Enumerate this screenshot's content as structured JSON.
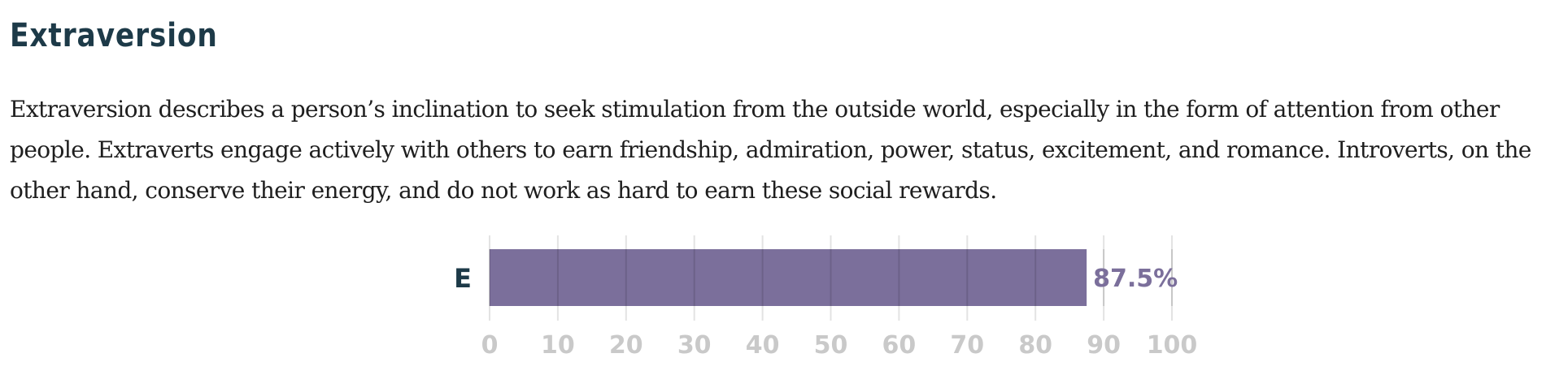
{
  "section": {
    "title": "Extraversion",
    "description": "Extraversion describes a person’s inclination to seek stimulation from the outside world, especially in the form of attention from other people. Extraverts engage actively with others to earn friendship, admiration, power, status, excitement, and romance. Introverts, on the other hand, conserve their energy, and do not work as hard to earn these social rewards."
  },
  "chart_data": {
    "type": "bar",
    "orientation": "horizontal",
    "categories": [
      "E"
    ],
    "values": [
      87.5
    ],
    "value_labels": [
      "87.5%"
    ],
    "xlim": [
      0,
      100
    ],
    "xticks": [
      0,
      10,
      20,
      30,
      40,
      50,
      60,
      70,
      80,
      90,
      100
    ],
    "grid": true,
    "bar_color": "#7b6f9b",
    "label_color": "#7b6f9b",
    "grid_color": "#e3e3e3",
    "tick_color": "#c9c9c9"
  }
}
